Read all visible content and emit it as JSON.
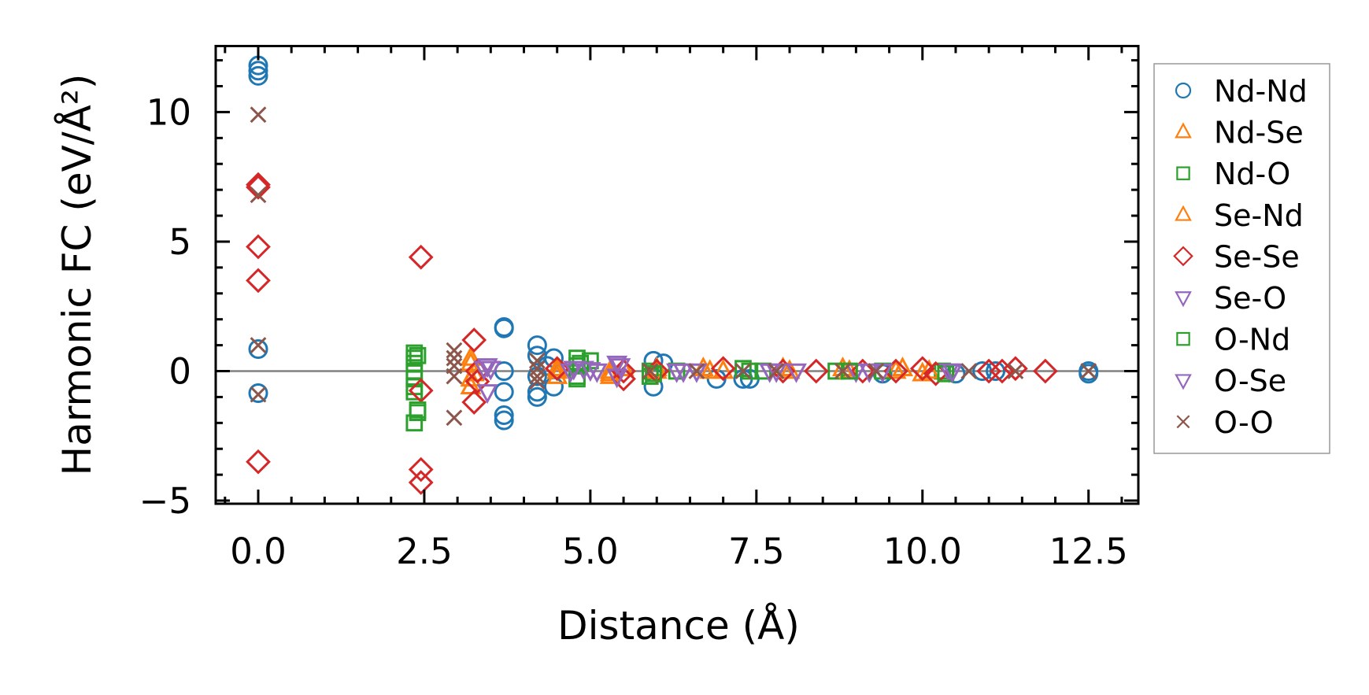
{
  "chart_data": {
    "type": "scatter",
    "title": "",
    "xlabel": "Distance (Å)",
    "ylabel": "Harmonic FC (eV/Å²)",
    "xlim": [
      -0.64,
      13.25
    ],
    "ylim": [
      -5.12,
      12.55
    ],
    "xticks": [
      0.0,
      2.5,
      5.0,
      7.5,
      10.0,
      12.5
    ],
    "xtick_labels": [
      "0.0",
      "2.5",
      "5.0",
      "7.5",
      "10.0",
      "12.5"
    ],
    "yticks": [
      -5,
      0,
      5,
      10
    ],
    "ytick_labels": [
      "−5",
      "0",
      "5",
      "10"
    ],
    "grid": false,
    "reference_line_y": 0,
    "legend_position": "outside-right",
    "series": [
      {
        "name": "Nd-Nd",
        "marker": "circle",
        "color": "#1f77b4",
        "x": [
          0,
          0,
          0,
          0,
          0,
          3.7,
          3.7,
          3.7,
          3.7,
          3.7,
          3.7,
          4.2,
          4.2,
          4.2,
          4.2,
          4.2,
          4.35,
          4.45,
          4.45,
          5.95,
          5.95,
          6.1,
          6.9,
          7.3,
          7.4,
          9.4,
          10.5,
          10.9,
          11.1,
          12.5,
          12.5
        ],
        "y": [
          11.8,
          11.6,
          11.4,
          0.85,
          -0.85,
          1.7,
          1.65,
          0,
          -0.8,
          -1.7,
          -1.9,
          1.0,
          0.6,
          -0.2,
          -0.8,
          -1.0,
          0.2,
          0.5,
          -0.6,
          0.4,
          -0.6,
          0.3,
          -0.3,
          -0.3,
          -0.3,
          -0.1,
          -0.1,
          0,
          0,
          0,
          -0.1
        ]
      },
      {
        "name": "Nd-Se",
        "marker": "triangle-up",
        "color": "#ff7f0e",
        "x": [
          3.2,
          3.2,
          3.2,
          4.5,
          4.5,
          5.3,
          5.3,
          6.0,
          6.7,
          7.0,
          8.0,
          8.8,
          9.6,
          10.0
        ],
        "y": [
          0.3,
          -0.3,
          -0.6,
          0,
          -0.2,
          0,
          -0.2,
          0.1,
          0.1,
          0,
          0,
          0.1,
          0,
          -0.1
        ]
      },
      {
        "name": "Nd-O",
        "marker": "square",
        "color": "#2ca02c",
        "x": [
          2.35,
          2.35,
          2.35,
          2.35,
          2.35,
          2.35,
          2.35,
          2.4,
          2.35,
          4.8,
          4.8,
          4.8,
          4.8,
          5.0,
          5.9,
          5.9,
          6.3,
          7.3,
          7.6,
          8.7,
          9.4,
          10.3
        ],
        "y": [
          0.7,
          0.5,
          0.3,
          0,
          -0.3,
          -0.6,
          -0.8,
          -1.6,
          -2.0,
          0.5,
          0.2,
          -0.2,
          -0.3,
          0.4,
          0,
          -0.2,
          0,
          0.1,
          0,
          0,
          0,
          0
        ]
      },
      {
        "name": "Se-Nd",
        "marker": "triangle-up",
        "color": "#ff7f0e",
        "x": [
          3.2,
          3.25,
          4.5,
          5.3,
          5.5,
          6.0,
          6.8,
          7.9,
          8.9,
          9.7,
          10.1
        ],
        "y": [
          0.5,
          -0.1,
          0.1,
          -0.1,
          0.1,
          0,
          0,
          0.1,
          0,
          0.1,
          0
        ]
      },
      {
        "name": "Se-Se",
        "marker": "diamond",
        "color": "#d62728",
        "x": [
          0,
          0,
          0,
          0,
          0,
          2.45,
          2.45,
          2.45,
          2.45,
          3.25,
          3.25,
          3.3,
          3.3,
          4.5,
          5.5,
          5.5,
          6.0,
          7.0,
          7.9,
          8.4,
          9.1,
          9.6,
          10.0,
          10.2,
          11.0,
          11.2,
          11.4,
          11.85
        ],
        "y": [
          7.2,
          7.1,
          4.8,
          3.5,
          -3.5,
          4.4,
          -0.75,
          -3.8,
          -4.3,
          1.2,
          -1.2,
          0,
          -0.4,
          0.1,
          0,
          -0.3,
          0,
          0.1,
          0,
          0,
          0,
          0,
          0.1,
          -0.1,
          0,
          0,
          0.1,
          0
        ]
      },
      {
        "name": "Se-O",
        "marker": "triangle-down",
        "color": "#9467bd",
        "x": [
          3.45,
          3.45,
          3.4,
          4.7,
          4.9,
          5.1,
          5.4,
          5.4,
          6.3,
          6.6,
          7.7,
          8.1,
          9.0,
          9.4,
          10.4
        ],
        "y": [
          -0.8,
          0.2,
          0.1,
          0,
          0.1,
          0,
          0.3,
          -0.2,
          0,
          0,
          0,
          0,
          0,
          0,
          0
        ]
      },
      {
        "name": "O-Nd",
        "marker": "square",
        "color": "#2ca02c",
        "x": [
          2.4,
          2.4,
          4.85,
          5.95,
          7.4,
          8.9,
          10.35
        ],
        "y": [
          0.6,
          -1.5,
          0.3,
          -0.1,
          0,
          0,
          -0.1
        ]
      },
      {
        "name": "O-Se",
        "marker": "triangle-down",
        "color": "#9467bd",
        "x": [
          3.5,
          4.75,
          5.0,
          5.45,
          6.4,
          7.8,
          9.2,
          10.45
        ],
        "y": [
          0.1,
          0.1,
          0.05,
          0.2,
          0,
          0,
          0,
          0
        ]
      },
      {
        "name": "O-O",
        "marker": "x",
        "color": "#8c564b",
        "x": [
          0,
          0,
          0,
          0,
          2.95,
          2.95,
          2.95,
          2.95,
          2.95,
          4.2,
          4.2,
          4.2,
          4.2,
          5.9,
          6.6,
          7.3,
          7.8,
          8.8,
          9.3,
          10.7,
          11.4,
          12.5
        ],
        "y": [
          9.9,
          6.8,
          1.0,
          -0.9,
          0.8,
          0.5,
          0.2,
          -0.2,
          -1.8,
          0.4,
          0.1,
          -0.2,
          -0.4,
          0,
          0,
          0,
          0,
          0,
          0,
          0,
          0,
          0
        ]
      }
    ]
  }
}
